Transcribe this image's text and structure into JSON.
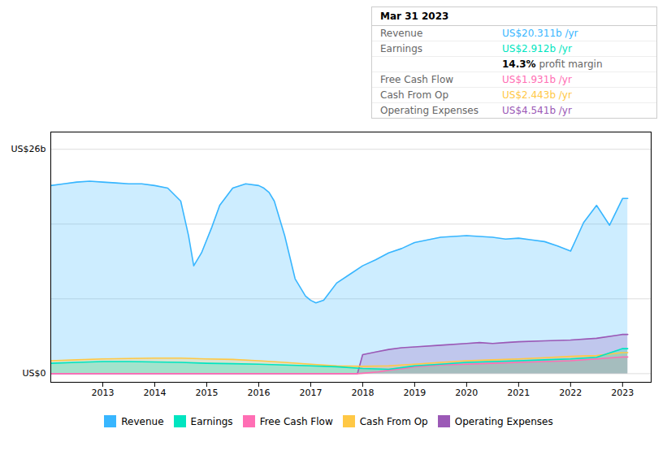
{
  "chart_data": {
    "type": "area",
    "xlim": [
      2012.0,
      2023.55
    ],
    "xticks": [
      2013,
      2014,
      2015,
      2016,
      2017,
      2018,
      2019,
      2020,
      2021,
      2022,
      2023
    ],
    "ylim": [
      -1.0,
      28.0
    ],
    "yticks": [
      0.0,
      8.67,
      17.33,
      26.0
    ],
    "grid": true,
    "tick_labels": "x",
    "legend": "bottom",
    "annotations": [
      {
        "text": "US$26b",
        "y": 26.0
      },
      {
        "text": "US$0",
        "y": 0.0
      }
    ],
    "info_box": {
      "title": "Mar 31 2023",
      "rows": [
        {
          "label": "Revenue",
          "value": "US$20.311b /yr",
          "color": "#38b6ff"
        },
        {
          "label": "Earnings",
          "value": "US$2.912b /yr",
          "color": "#00e5c0"
        },
        {
          "value": "14.3%",
          "note": "profit margin"
        },
        {
          "label": "Free Cash Flow",
          "value": "US$1.931b /yr",
          "color": "#ff6eb4"
        },
        {
          "label": "Cash From Op",
          "value": "US$2.443b /yr",
          "color": "#ffc845"
        },
        {
          "label": "Operating Expenses",
          "value": "US$4.541b /yr",
          "color": "#9b59b6"
        }
      ]
    },
    "series": [
      {
        "name": "Revenue",
        "color": "#38b6ff",
        "x": [
          2012.0,
          2012.25,
          2012.5,
          2012.75,
          2013.0,
          2013.25,
          2013.5,
          2013.75,
          2014.0,
          2014.25,
          2014.5,
          2014.65,
          2014.75,
          2014.9,
          2015.0,
          2015.1,
          2015.25,
          2015.5,
          2015.75,
          2016.0,
          2016.1,
          2016.2,
          2016.3,
          2016.5,
          2016.7,
          2016.9,
          2017.0,
          2017.1,
          2017.25,
          2017.5,
          2017.75,
          2018.0,
          2018.25,
          2018.5,
          2018.75,
          2019.0,
          2019.25,
          2019.5,
          2019.75,
          2020.0,
          2020.25,
          2020.5,
          2020.75,
          2021.0,
          2021.25,
          2021.5,
          2021.75,
          2022.0,
          2022.1,
          2022.25,
          2022.5,
          2022.75,
          2023.0,
          2023.1
        ],
        "values": [
          21.8,
          22.0,
          22.2,
          22.3,
          22.2,
          22.1,
          22.0,
          22.0,
          21.8,
          21.5,
          20.0,
          16.0,
          12.5,
          14.0,
          15.5,
          17.0,
          19.5,
          21.5,
          22.0,
          21.8,
          21.5,
          21.0,
          20.0,
          16.0,
          11.0,
          9.0,
          8.5,
          8.2,
          8.5,
          10.5,
          11.5,
          12.5,
          13.2,
          14.0,
          14.5,
          15.2,
          15.5,
          15.8,
          15.9,
          16.0,
          15.9,
          15.8,
          15.6,
          15.7,
          15.5,
          15.3,
          14.8,
          14.2,
          15.5,
          17.5,
          19.5,
          17.2,
          20.3,
          20.3
        ]
      },
      {
        "name": "Earnings",
        "color": "#00e5c0",
        "x": [
          2012.0,
          2012.5,
          2013.0,
          2013.5,
          2014.0,
          2014.5,
          2015.0,
          2015.5,
          2016.0,
          2016.5,
          2017.0,
          2017.5,
          2018.0,
          2018.5,
          2019.0,
          2019.5,
          2020.0,
          2020.5,
          2021.0,
          2021.5,
          2022.0,
          2022.5,
          2023.0,
          2023.1
        ],
        "values": [
          1.2,
          1.3,
          1.4,
          1.4,
          1.35,
          1.3,
          1.2,
          1.15,
          1.1,
          1.0,
          0.9,
          0.8,
          0.6,
          0.5,
          0.9,
          1.1,
          1.3,
          1.4,
          1.5,
          1.6,
          1.7,
          1.9,
          2.9,
          2.9
        ]
      },
      {
        "name": "Free Cash Flow",
        "color": "#ff6eb4",
        "x": [
          2012.0,
          2013.0,
          2014.0,
          2015.0,
          2016.0,
          2017.0,
          2017.9,
          2018.0,
          2018.3,
          2018.5,
          2018.8,
          2019.0,
          2019.5,
          2020.0,
          2020.5,
          2021.0,
          2021.5,
          2022.0,
          2022.5,
          2023.0,
          2023.1
        ],
        "values": [
          0.0,
          0.0,
          0.0,
          0.0,
          0.0,
          0.0,
          0.0,
          0.05,
          0.2,
          0.4,
          0.6,
          0.8,
          1.0,
          1.1,
          1.2,
          1.3,
          1.4,
          1.5,
          1.7,
          1.93,
          1.93
        ]
      },
      {
        "name": "Cash From Op",
        "color": "#ffc845",
        "x": [
          2012.0,
          2012.5,
          2013.0,
          2013.5,
          2014.0,
          2014.5,
          2015.0,
          2015.5,
          2016.0,
          2016.5,
          2017.0,
          2017.5,
          2018.0,
          2018.5,
          2019.0,
          2019.5,
          2020.0,
          2020.5,
          2021.0,
          2021.5,
          2022.0,
          2022.5,
          2023.0,
          2023.1
        ],
        "values": [
          1.5,
          1.6,
          1.7,
          1.75,
          1.8,
          1.8,
          1.7,
          1.65,
          1.5,
          1.3,
          1.1,
          0.9,
          0.85,
          0.9,
          1.1,
          1.3,
          1.5,
          1.6,
          1.7,
          1.85,
          2.0,
          2.1,
          2.443,
          2.443
        ]
      },
      {
        "name": "Operating Expenses",
        "color": "#9b59b6",
        "x": [
          2012.0,
          2013.0,
          2014.0,
          2015.0,
          2016.0,
          2017.0,
          2017.9,
          2018.0,
          2018.25,
          2018.5,
          2018.75,
          2019.0,
          2019.5,
          2020.0,
          2020.25,
          2020.5,
          2020.75,
          2021.0,
          2021.5,
          2022.0,
          2022.5,
          2023.0,
          2023.1
        ],
        "values": [
          0.0,
          0.0,
          0.0,
          0.0,
          0.0,
          0.0,
          0.0,
          2.2,
          2.5,
          2.8,
          3.0,
          3.1,
          3.3,
          3.5,
          3.6,
          3.5,
          3.6,
          3.7,
          3.8,
          3.9,
          4.1,
          4.541,
          4.541
        ]
      }
    ]
  }
}
